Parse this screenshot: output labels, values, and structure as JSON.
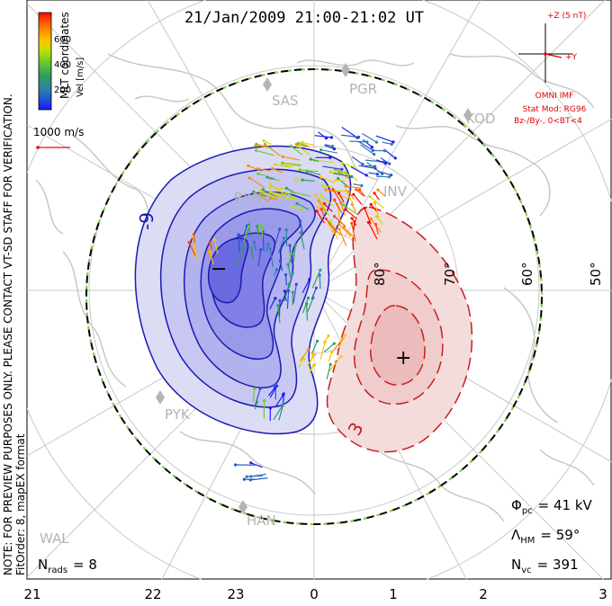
{
  "title": "21/Jan/2009 21:00-21:02 UT",
  "colorbar": {
    "ticks": [
      "600",
      "400",
      "200"
    ],
    "label": "Vel [m/s]",
    "colors": [
      "#ff0000",
      "#ff4a00",
      "#ff8c00",
      "#ffc000",
      "#c8e000",
      "#6ccc2a",
      "#2e9e5e",
      "#2a7fb0",
      "#2b4fd0",
      "#1a1aff"
    ]
  },
  "coord_label": "MLT coordinates",
  "ref_vector_label": "1000 m/s",
  "imf": {
    "z_label": "+Z (5 nT)",
    "y_label": "+Y",
    "source": "OMNI IMF",
    "stat_mod": "Stat Mod: RG96",
    "condition": "Bz-/By-, 0<BT<4"
  },
  "stations": [
    "SAS",
    "PGR",
    "KOD",
    "INV",
    "RKN",
    "HAN",
    "PYK",
    "WAL"
  ],
  "lat_labels": [
    "80°",
    "70°",
    "60°",
    "50°"
  ],
  "contour_labels": {
    "negative": "-9",
    "positive": "3"
  },
  "extrema": {
    "min": "−",
    "max": "+"
  },
  "note": "NOTE: FOR PREVIEW PURPOSES ONLY. PLEASE CONTACT VT-SD STAFF FOR VERIFICATION.",
  "fitorder": "FitOrder: 8, mapEX format",
  "stats": {
    "phi_symbol": "Φ",
    "phi_sub": "pc",
    "phi_value": "= 41 kV",
    "lambda_symbol": "Λ",
    "lambda_sub": "HM",
    "lambda_value": "= 59°",
    "nvc_symbol": "N",
    "nvc_sub": "vc",
    "nvc_value": "= 391",
    "nrads_symbol": "N",
    "nrads_sub": "rads",
    "nrads_value": "= 8"
  },
  "mlt_ticks": [
    "21",
    "22",
    "23",
    "0",
    "1",
    "2",
    "3"
  ]
}
